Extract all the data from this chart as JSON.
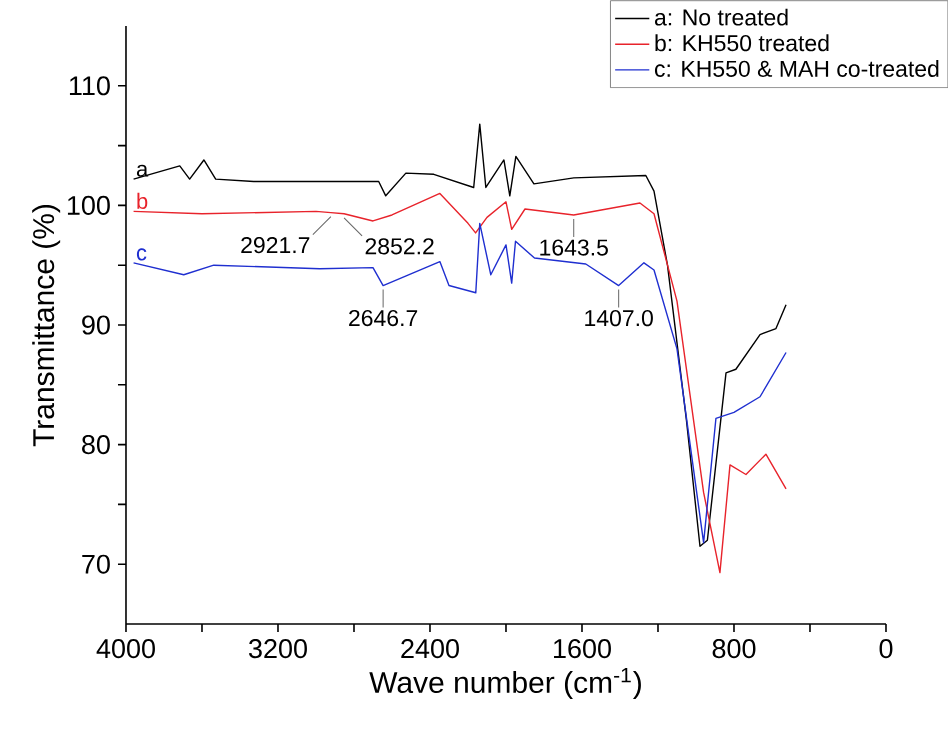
{
  "chart_data": {
    "type": "line",
    "xlabel": "Wave number (cm$^{-1}$)",
    "ylabel": "Transmittance (%)",
    "xlim": [
      4000,
      0
    ],
    "ylim": [
      65,
      115
    ],
    "xticks": [
      4000,
      {
        "value": 3600,
        "label": null
      },
      3200,
      {
        "value": 2800,
        "label": null
      },
      2400,
      {
        "value": 2000,
        "label": null
      },
      1600,
      {
        "value": 1200,
        "label": null
      },
      800,
      {
        "value": 400,
        "label": null
      },
      0
    ],
    "yticks": [
      70,
      {
        "value": 75,
        "label": null
      },
      80,
      {
        "value": 85,
        "label": null
      },
      90,
      {
        "value": 95,
        "label": null
      },
      100,
      {
        "value": 105,
        "label": null
      },
      110
    ],
    "legend": "top right",
    "grid": false,
    "marker": "none",
    "line_style": "solid",
    "series": [
      {
        "name": "a: No treated",
        "color": "#000000",
        "x": [
          3960,
          3717,
          3665,
          3590,
          3528,
          3328,
          2670,
          2633,
          2527,
          2380,
          2170,
          2138,
          2106,
          2011,
          1980,
          1948,
          1853,
          1643,
          1264,
          1221,
          1150,
          1050,
          979,
          940,
          842,
          790,
          663,
          579,
          526
        ],
        "values": [
          102.2,
          103.3,
          102.2,
          103.8,
          102.2,
          102.0,
          102.0,
          100.8,
          102.7,
          102.6,
          101.5,
          106.8,
          101.5,
          103.8,
          100.8,
          104.1,
          101.8,
          102.3,
          102.5,
          101.2,
          95,
          82,
          71.5,
          72,
          86,
          86.3,
          89.2,
          89.7,
          91.7
        ]
      },
      {
        "name": "b: KH550 treated",
        "color": "#e8232b",
        "x": [
          3960,
          3600,
          3000,
          2921.7,
          2852.2,
          2700,
          2600,
          2348,
          2200,
          2160,
          2100,
          2000,
          1970,
          1900,
          1643.5,
          1295,
          1221,
          1100,
          960,
          874,
          821,
          737,
          632,
          526
        ],
        "values": [
          99.5,
          99.3,
          99.5,
          99.4,
          99.3,
          98.7,
          99.2,
          101.0,
          98.5,
          97.7,
          99.0,
          100.3,
          98.0,
          99.7,
          99.2,
          100.2,
          99.3,
          92,
          76,
          69.3,
          78.3,
          77.5,
          79.2,
          76.3
        ]
      },
      {
        "name": "c: KH550 & MAH co-treated",
        "color": "#1f2fd0",
        "x": [
          3960,
          3696,
          3538,
          2980,
          2700,
          2646.7,
          2348,
          2300,
          2159,
          2138,
          2080,
          2000,
          1970,
          1950,
          1850,
          1580,
          1407,
          1274,
          1221,
          1100,
          960,
          895,
          800,
          663,
          526
        ],
        "values": [
          95.2,
          94.2,
          95.0,
          94.7,
          94.8,
          93.3,
          95.3,
          93.3,
          92.7,
          98.5,
          94.2,
          96.7,
          93.5,
          97.0,
          95.6,
          95.1,
          93.3,
          95.2,
          94.6,
          88,
          71.8,
          82.2,
          82.7,
          84.0,
          87.7
        ]
      }
    ],
    "annotations": [
      {
        "text": "a",
        "x": 3960,
        "y": 102.2
      },
      {
        "text": "b",
        "x": 3960,
        "y": 99.5
      },
      {
        "text": "c",
        "x": 3960,
        "y": 95.2
      },
      {
        "text": "2921.7",
        "x": 2921.7,
        "y": 99.4
      },
      {
        "text": "2852.2",
        "x": 2852.2,
        "y": 99.3
      },
      {
        "text": "1643.5",
        "x": 1643.5,
        "y": 99.2
      },
      {
        "text": "2646.7",
        "x": 2646.7,
        "y": 93.3
      },
      {
        "text": "1407.0",
        "x": 1407,
        "y": 93.3
      }
    ]
  }
}
